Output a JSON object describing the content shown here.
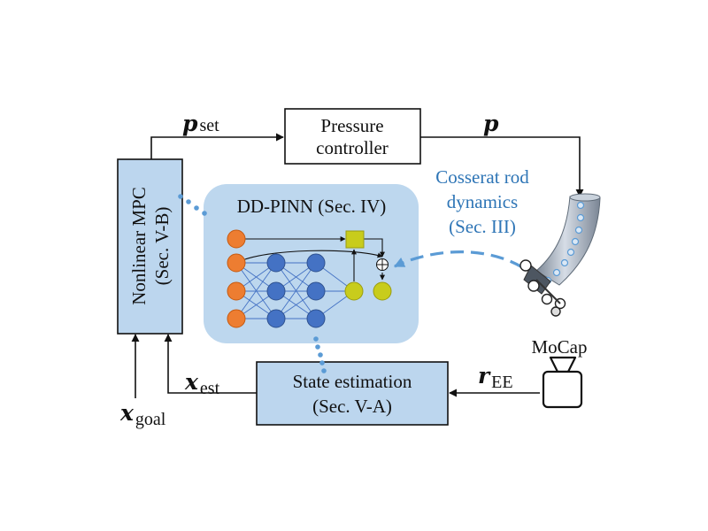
{
  "blocks": {
    "mpc": {
      "line1": "Nonlinear MPC",
      "line2": "(Sec. V-B)"
    },
    "pressure": {
      "line1": "Pressure",
      "line2": "controller"
    },
    "pinn": {
      "title": "DD-PINN (Sec. IV)"
    },
    "state": {
      "line1": "State estimation",
      "line2": "(Sec. V-A)"
    }
  },
  "labels": {
    "p_set": {
      "symbol": "p",
      "sub": "set"
    },
    "p": {
      "symbol": "p"
    },
    "x_est": {
      "symbol": "x",
      "sub": "est"
    },
    "x_goal": {
      "symbol": "x",
      "sub": "goal"
    },
    "r_ee": {
      "symbol": "r",
      "sub": "EE"
    },
    "mocap": "MoCap",
    "cosserat": {
      "line1": "Cosserat rod",
      "line2": "dynamics",
      "line3": "(Sec. III)"
    },
    "oplus": "⊕"
  },
  "colors": {
    "block_fill": "#bcd6ee",
    "block_stroke": "#111111",
    "pinn_fill": "#bdd7ee",
    "cosserat_text": "#2e75b6",
    "dashed_link": "#5b9bd5",
    "node_input": "#ed7d31",
    "node_hidden": "#4472c4",
    "node_output": "#c8cc1c",
    "node_stroke": "#2f528f",
    "robot_body": "#a8b5c4"
  }
}
